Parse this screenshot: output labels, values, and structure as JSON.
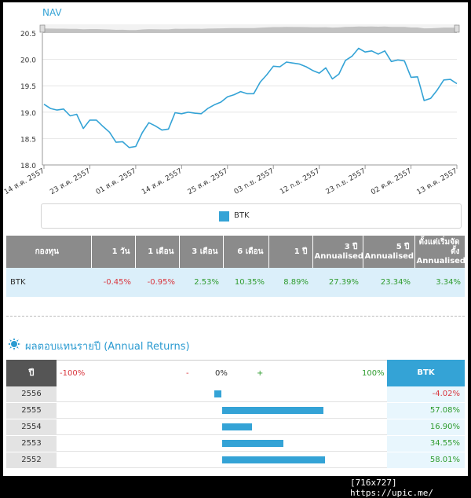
{
  "nav_chart": {
    "title": "NAV",
    "colors": {
      "line": "#34a3d6",
      "grid": "#e6e6e6",
      "axis": "#555555",
      "navigator": "#9a9a9a"
    },
    "chart_data": {
      "type": "line",
      "title": "NAV",
      "ylim": [
        18.0,
        20.5
      ],
      "yticks": [
        "20.5",
        "20.0",
        "19.5",
        "19.0",
        "18.5",
        "18.0"
      ],
      "xticks": [
        "14 ส.ค. 2557",
        "23 ส.ค. 2557",
        "01 ส.ค. 2557",
        "14 ส.ค. 2557",
        "25 ส.ค. 2557",
        "03 ก.ย. 2557",
        "12 ก.ย. 2557",
        "23 ก.ย. 2557",
        "02 ต.ค. 2557",
        "13 ต.ค. 2557"
      ],
      "grid": true,
      "series": [
        {
          "name": "BTK",
          "values": [
            19.15,
            19.07,
            19.04,
            19.06,
            18.93,
            18.96,
            18.69,
            18.85,
            18.85,
            18.73,
            18.62,
            18.43,
            18.44,
            18.33,
            18.35,
            18.61,
            18.8,
            18.74,
            18.66,
            18.68,
            18.99,
            18.97,
            19.0,
            18.98,
            18.97,
            19.07,
            19.14,
            19.19,
            19.29,
            19.33,
            19.39,
            19.35,
            19.35,
            19.57,
            19.71,
            19.87,
            19.86,
            19.95,
            19.93,
            19.91,
            19.86,
            19.79,
            19.74,
            19.84,
            19.63,
            19.72,
            19.98,
            20.06,
            20.21,
            20.14,
            20.16,
            20.1,
            20.16,
            19.96,
            19.99,
            19.97,
            19.66,
            19.67,
            19.22,
            19.26,
            19.42,
            19.61,
            19.62,
            19.54
          ]
        }
      ]
    }
  },
  "legend": {
    "items": [
      {
        "name": "BTK",
        "color": "#34a3d6"
      }
    ]
  },
  "returns_table": {
    "headers": [
      "กองทุน",
      "1 วัน",
      "1 เดือน",
      "3 เดือน",
      "6 เดือน",
      "1 ปี",
      "3 ปี Annualised",
      "5 ปี Annualised",
      "ตั้งแต่เริ่มจัดตั้ง Annualised"
    ],
    "row": {
      "fund": "BTK",
      "values": [
        {
          "text": "-0.45%",
          "tone": "neg"
        },
        {
          "text": "-0.95%",
          "tone": "neg"
        },
        {
          "text": "2.53%",
          "tone": "pos"
        },
        {
          "text": "10.35%",
          "tone": "pos"
        },
        {
          "text": "8.89%",
          "tone": "pos"
        },
        {
          "text": "27.39%",
          "tone": "pos"
        },
        {
          "text": "23.34%",
          "tone": "pos"
        },
        {
          "text": "3.34%",
          "tone": "pos"
        }
      ]
    }
  },
  "annual_returns": {
    "title": "ผลตอบแทนรายปี (Annual Returns)",
    "header": {
      "year": "ปี",
      "min_label": "-100%",
      "minus": "-",
      "zero": "0%",
      "plus": "+",
      "max_label": "100%",
      "fund": "BTK"
    },
    "range": [
      -100,
      100
    ],
    "rows": [
      {
        "year": "2556",
        "value": -4.02,
        "text": "-4.02%",
        "tone": "neg"
      },
      {
        "year": "2555",
        "value": 57.08,
        "text": "57.08%",
        "tone": "pos"
      },
      {
        "year": "2554",
        "value": 16.9,
        "text": "16.90%",
        "tone": "pos"
      },
      {
        "year": "2553",
        "value": 34.55,
        "text": "34.55%",
        "tone": "pos"
      },
      {
        "year": "2552",
        "value": 58.01,
        "text": "58.01%",
        "tone": "pos"
      }
    ]
  },
  "watermark": "[716x727] https://upic.me/"
}
